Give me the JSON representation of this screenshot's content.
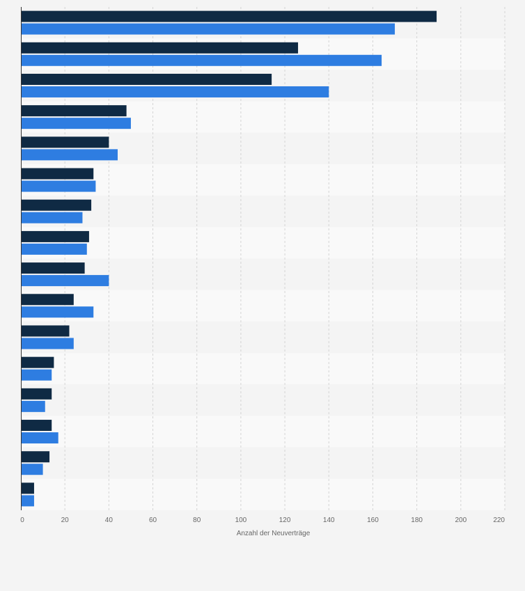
{
  "chart_data": {
    "type": "bar",
    "orientation": "horizontal",
    "title": "",
    "xlabel": "Anzahl der Neuverträge",
    "ylabel": "",
    "xlim": [
      0,
      220
    ],
    "x_ticks": [
      0,
      20,
      40,
      60,
      80,
      100,
      120,
      140,
      160,
      180,
      200,
      220
    ],
    "grid": true,
    "legend": "none",
    "categories": [
      "",
      "",
      "",
      "",
      "",
      "",
      "",
      "",
      "",
      "",
      "",
      "",
      "",
      "",
      "",
      ""
    ],
    "series": [
      {
        "color": "#0f2a44",
        "values": [
          189,
          126,
          114,
          48,
          40,
          33,
          32,
          31,
          29,
          24,
          22,
          15,
          14,
          14,
          13,
          6
        ]
      },
      {
        "color": "#2e7de1",
        "values": [
          170,
          164,
          140,
          50,
          44,
          34,
          28,
          30,
          40,
          33,
          24,
          14,
          11,
          17,
          10,
          6
        ]
      }
    ]
  }
}
